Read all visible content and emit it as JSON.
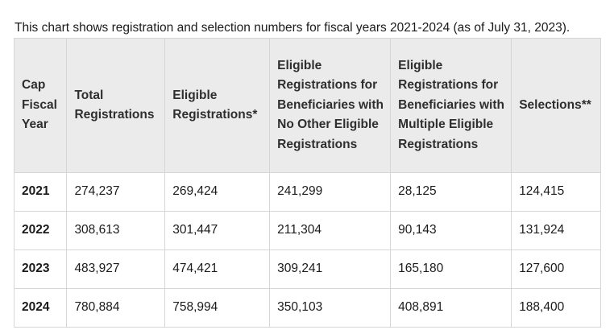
{
  "intro_text": "This chart shows registration and selection numbers for fiscal years 2021-2024 (as of July 31, 2023).",
  "table": {
    "headers": [
      "Cap Fiscal Year",
      "Total Registrations",
      "Eligible Registrations*",
      "Eligible Registrations for Beneficiaries with No Other Eligible Registrations",
      "Eligible Registrations for Beneficiaries with Multiple Eligible Registrations",
      "Selections**"
    ],
    "rows": [
      [
        "2021",
        "274,237",
        "269,424",
        "241,299",
        "28,125",
        "124,415"
      ],
      [
        "2022",
        "308,613",
        "301,447",
        "211,304",
        "90,143",
        "131,924"
      ],
      [
        "2023",
        "483,927",
        "474,421",
        "309,241",
        "165,180",
        "127,600"
      ],
      [
        "2024",
        "780,884",
        "758,994",
        "350,103",
        "408,891",
        "188,400"
      ]
    ]
  }
}
